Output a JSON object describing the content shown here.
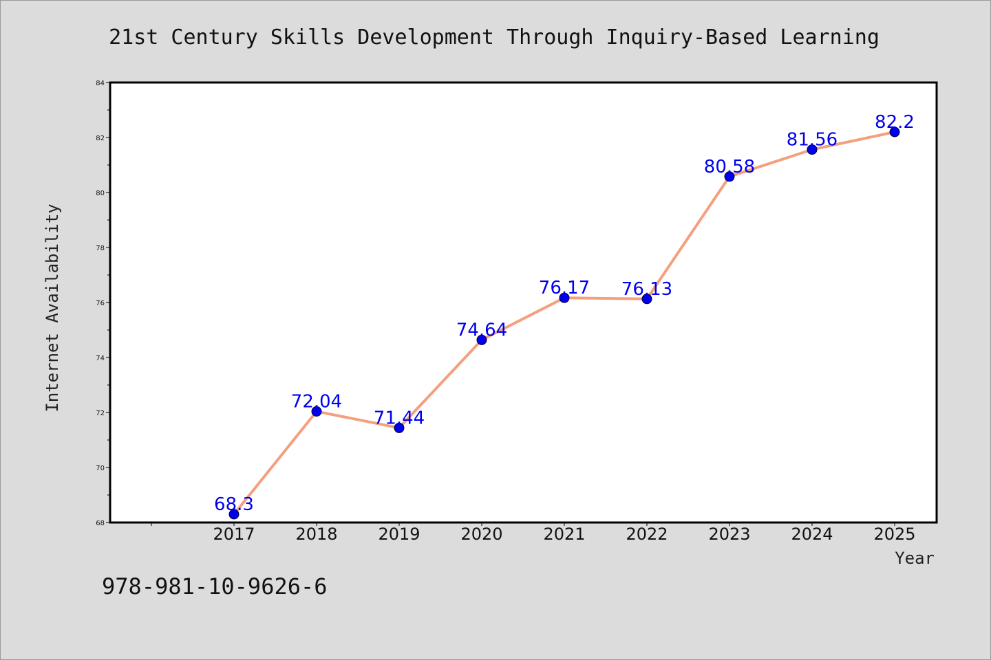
{
  "chart_data": {
    "type": "line",
    "title": "21st Century Skills Development Through Inquiry-Based Learning",
    "xlabel": "Year",
    "ylabel": "Internet Availability",
    "categories": [
      "2017",
      "2018",
      "2019",
      "2020",
      "2021",
      "2022",
      "2023",
      "2024",
      "2025"
    ],
    "series": [
      {
        "values": [
          68.3,
          72.04,
          71.44,
          74.64,
          76.17,
          76.13,
          80.58,
          81.56,
          82.2
        ],
        "data_labels": [
          "68.3",
          "72.04",
          "71.44",
          "74.64",
          "76.17",
          "76.13",
          "80.58",
          "81.56",
          "82.2"
        ]
      }
    ],
    "ylim": [
      68,
      84
    ],
    "yticks": [
      "68",
      "70",
      "72",
      "74",
      "76",
      "78",
      "80",
      "82",
      "84"
    ],
    "grid": false,
    "colors": {
      "line": "#f4a07e",
      "marker": "#0000ee",
      "label": "#0000ee"
    }
  },
  "footer": {
    "isbn": "978-981-10-9626-6"
  }
}
